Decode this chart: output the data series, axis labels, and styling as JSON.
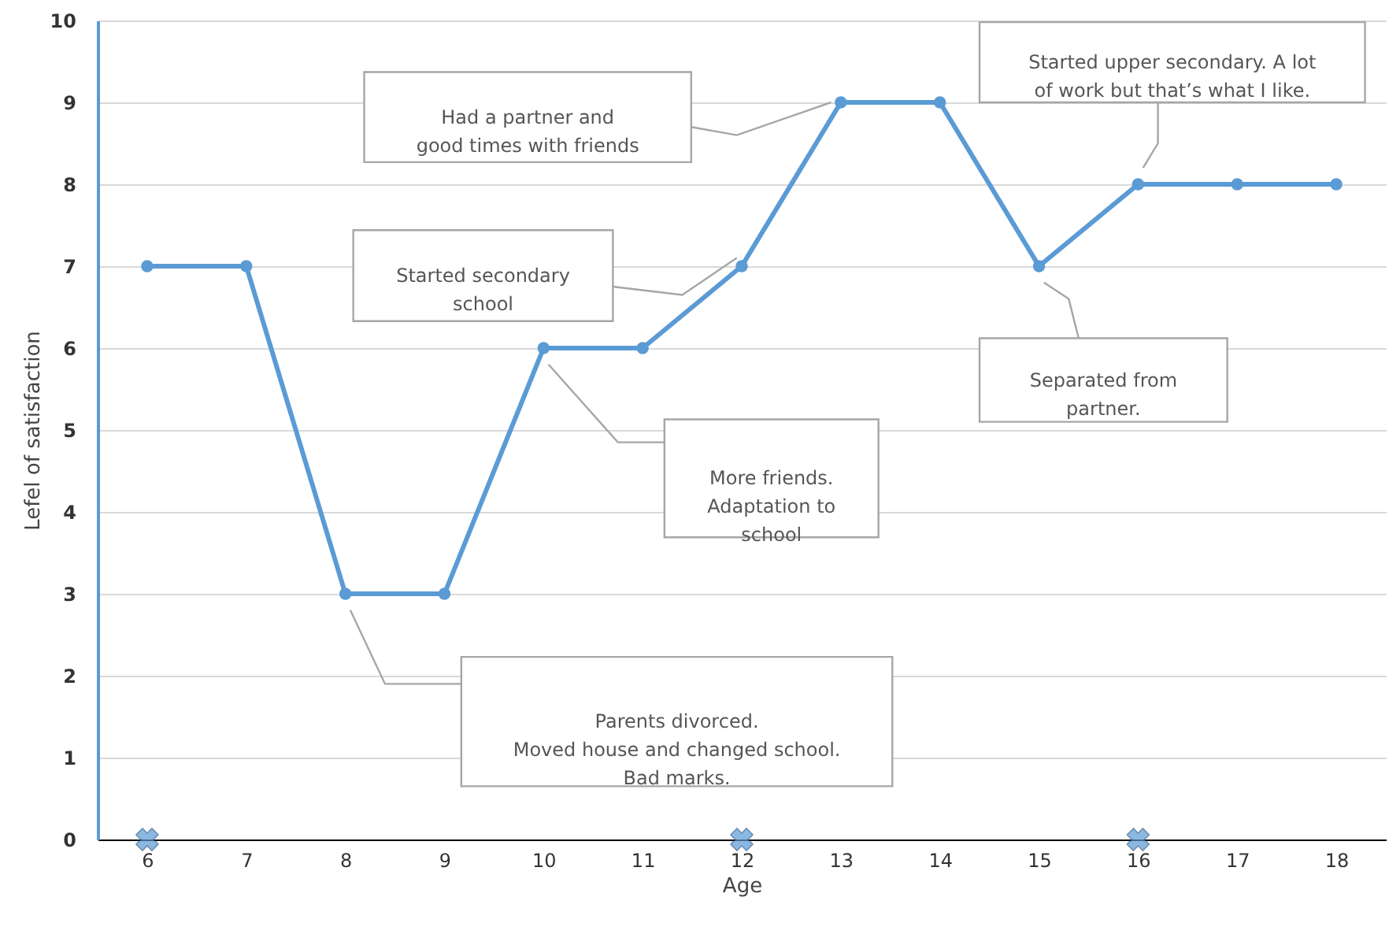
{
  "chart_data": {
    "type": "line",
    "xlabel": "Age",
    "ylabel": "Lefel of satisfaction",
    "categories": [
      "6",
      "7",
      "8",
      "9",
      "10",
      "11",
      "12",
      "13",
      "14",
      "15",
      "16",
      "17",
      "18"
    ],
    "series": [
      {
        "color": "#5b9bd5",
        "values": [
          7,
          7,
          3,
          3,
          6,
          6,
          7,
          9,
          9,
          7,
          8,
          8,
          8
        ]
      },
      {
        "type": "scatter",
        "color": "#5b9bd5",
        "marker": "cross",
        "x": [
          "6",
          "12",
          "16"
        ],
        "values": [
          0,
          0,
          0
        ]
      }
    ],
    "ylim": [
      0,
      10
    ],
    "yticks": [
      0,
      1,
      2,
      3,
      4,
      5,
      6,
      7,
      8,
      9,
      10
    ],
    "grid": "y",
    "marker": "circle",
    "line_style": "solid",
    "annotations": [
      "Parents divorced.\nMoved house and changed school.\nBad marks.",
      "More friends.\nAdaptation to\nschool",
      "Started secondary\nschool",
      "Had a partner and\ngood times with friends",
      "Separated from\npartner.",
      "Started upper secondary. A lot\nof work but that’s what I like."
    ]
  }
}
